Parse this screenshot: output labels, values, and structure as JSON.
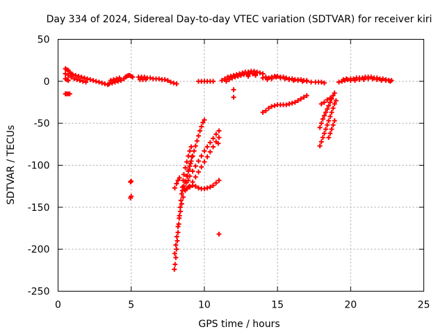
{
  "chart_data": {
    "type": "scatter",
    "title": "Day 334 of 2024, Sidereal Day-to-day VTEC variation (SDTVAR) for receiver kiri",
    "xlabel": "GPS time / hours",
    "ylabel": "SDTVAR / TECUs",
    "xlim": [
      0,
      25
    ],
    "ylim": [
      -250,
      50
    ],
    "xticks": [
      0,
      5,
      10,
      15,
      20,
      25
    ],
    "yticks": [
      -250,
      -200,
      -150,
      -100,
      -50,
      0,
      50
    ],
    "grid": true,
    "marker": "plus",
    "color": "#ff0000",
    "series": [
      {
        "points": [
          [
            0.5,
            15
          ],
          [
            0.6,
            14
          ],
          [
            0.7,
            13
          ],
          [
            0.8,
            11
          ],
          [
            0.9,
            9
          ],
          [
            1.0,
            8
          ],
          [
            1.2,
            7
          ],
          [
            1.4,
            6
          ],
          [
            1.6,
            5
          ],
          [
            1.8,
            4
          ],
          [
            2.0,
            3
          ],
          [
            2.2,
            2
          ],
          [
            2.4,
            1
          ],
          [
            2.6,
            0
          ],
          [
            2.8,
            -1
          ],
          [
            3.0,
            -2
          ],
          [
            3.2,
            -3
          ],
          [
            3.4,
            -4
          ],
          [
            0.5,
            9
          ],
          [
            0.7,
            7
          ],
          [
            0.9,
            5
          ],
          [
            1.1,
            3
          ],
          [
            1.3,
            2
          ],
          [
            1.5,
            1
          ],
          [
            1.7,
            0
          ],
          [
            1.9,
            -1
          ],
          [
            0.5,
            3
          ],
          [
            0.6,
            2
          ],
          [
            0.7,
            1
          ],
          [
            0.5,
            -15
          ],
          [
            0.6,
            -15
          ],
          [
            0.7,
            -15
          ],
          [
            0.8,
            -15
          ],
          [
            3.5,
            -3
          ],
          [
            3.7,
            -2
          ],
          [
            3.9,
            -1
          ],
          [
            4.1,
            0
          ],
          [
            4.3,
            1
          ],
          [
            4.5,
            3
          ],
          [
            4.6,
            5
          ],
          [
            4.7,
            6
          ],
          [
            4.8,
            7
          ],
          [
            4.9,
            7
          ],
          [
            5.0,
            6
          ],
          [
            5.1,
            5
          ],
          [
            3.6,
            1
          ],
          [
            3.8,
            2
          ],
          [
            4.0,
            3
          ],
          [
            4.2,
            4
          ],
          [
            5.5,
            5
          ],
          [
            5.7,
            5
          ],
          [
            5.9,
            5
          ],
          [
            6.1,
            4
          ],
          [
            6.3,
            4
          ],
          [
            6.5,
            3
          ],
          [
            6.7,
            3
          ],
          [
            6.9,
            3
          ],
          [
            7.1,
            2
          ],
          [
            7.3,
            2
          ],
          [
            7.5,
            1
          ],
          [
            7.7,
            -1
          ],
          [
            7.9,
            -2
          ],
          [
            8.1,
            -3
          ],
          [
            5.6,
            2
          ],
          [
            5.8,
            2
          ],
          [
            6.0,
            2
          ],
          [
            5.0,
            -119
          ],
          [
            4.95,
            -120
          ],
          [
            5.0,
            -137
          ],
          [
            4.95,
            -139
          ],
          [
            7.95,
            -224
          ],
          [
            8.0,
            -218
          ],
          [
            8.05,
            -210
          ],
          [
            8.1,
            -200
          ],
          [
            8.15,
            -190
          ],
          [
            8.2,
            -180
          ],
          [
            8.25,
            -170
          ],
          [
            8.3,
            -160
          ],
          [
            8.35,
            -150
          ],
          [
            8.4,
            -142
          ],
          [
            8.45,
            -134
          ],
          [
            8.5,
            -126
          ],
          [
            8.55,
            -118
          ],
          [
            8.6,
            -111
          ],
          [
            8.7,
            -103
          ],
          [
            8.8,
            -96
          ],
          [
            8.9,
            -89
          ],
          [
            9.0,
            -83
          ],
          [
            9.1,
            -78
          ],
          [
            7.98,
            -205
          ],
          [
            8.05,
            -195
          ],
          [
            8.12,
            -185
          ],
          [
            8.2,
            -173
          ],
          [
            8.28,
            -163
          ],
          [
            8.36,
            -155
          ],
          [
            8.45,
            -146
          ],
          [
            8.55,
            -138
          ],
          [
            8.65,
            -129
          ],
          [
            8.75,
            -121
          ],
          [
            8.85,
            -113
          ],
          [
            8.95,
            -105
          ],
          [
            9.05,
            -98
          ],
          [
            9.15,
            -90
          ],
          [
            7.98,
            -127
          ],
          [
            8.1,
            -122
          ],
          [
            8.2,
            -118
          ],
          [
            8.3,
            -115
          ],
          [
            8.5,
            -130
          ],
          [
            8.6,
            -125
          ],
          [
            8.7,
            -119
          ],
          [
            8.8,
            -113
          ],
          [
            8.9,
            -107
          ],
          [
            9.0,
            -101
          ],
          [
            9.1,
            -95
          ],
          [
            9.2,
            -89
          ],
          [
            9.3,
            -83
          ],
          [
            9.4,
            -77
          ],
          [
            9.5,
            -71
          ],
          [
            9.6,
            -65
          ],
          [
            9.7,
            -59
          ],
          [
            9.8,
            -54
          ],
          [
            9.9,
            -49
          ],
          [
            10.0,
            -46
          ],
          [
            8.7,
            -130
          ],
          [
            8.8,
            -128
          ],
          [
            8.9,
            -126
          ],
          [
            9.0,
            -125
          ],
          [
            9.2,
            -124
          ],
          [
            9.4,
            -125
          ],
          [
            9.6,
            -127
          ],
          [
            9.8,
            -128
          ],
          [
            10.0,
            -128
          ],
          [
            10.2,
            -127
          ],
          [
            10.4,
            -126
          ],
          [
            10.6,
            -124
          ],
          [
            10.8,
            -121
          ],
          [
            11.0,
            -118
          ],
          [
            8.9,
            -118
          ],
          [
            9.0,
            -113
          ],
          [
            9.2,
            -107
          ],
          [
            9.4,
            -101
          ],
          [
            9.6,
            -95
          ],
          [
            9.8,
            -89
          ],
          [
            10.0,
            -83
          ],
          [
            10.2,
            -78
          ],
          [
            10.4,
            -73
          ],
          [
            10.6,
            -68
          ],
          [
            10.8,
            -63
          ],
          [
            11.0,
            -59
          ],
          [
            9.0,
            -126
          ],
          [
            9.2,
            -120
          ],
          [
            9.4,
            -114
          ],
          [
            9.6,
            -108
          ],
          [
            9.8,
            -102
          ],
          [
            10.0,
            -96
          ],
          [
            10.2,
            -90
          ],
          [
            10.4,
            -84
          ],
          [
            10.6,
            -78
          ],
          [
            10.8,
            -72
          ],
          [
            11.0,
            -67
          ],
          [
            10.95,
            -74
          ],
          [
            11.0,
            -182
          ],
          [
            9.6,
            0
          ],
          [
            9.8,
            0
          ],
          [
            10.0,
            0
          ],
          [
            10.2,
            0
          ],
          [
            10.4,
            0
          ],
          [
            10.6,
            0
          ],
          [
            11.2,
            1
          ],
          [
            11.4,
            3
          ],
          [
            11.6,
            5
          ],
          [
            11.8,
            6
          ],
          [
            12.0,
            7
          ],
          [
            12.2,
            8
          ],
          [
            12.4,
            9
          ],
          [
            12.6,
            10
          ],
          [
            12.8,
            11
          ],
          [
            13.0,
            11
          ],
          [
            13.2,
            12
          ],
          [
            13.4,
            12
          ],
          [
            13.6,
            11
          ],
          [
            13.8,
            10
          ],
          [
            14.0,
            9
          ],
          [
            11.5,
            0
          ],
          [
            11.7,
            2
          ],
          [
            11.9,
            4
          ],
          [
            12.1,
            5
          ],
          [
            12.3,
            6
          ],
          [
            12.5,
            7
          ],
          [
            12.7,
            8
          ],
          [
            12.9,
            8
          ],
          [
            13.1,
            9
          ],
          [
            13.3,
            9
          ],
          [
            13.5,
            8
          ],
          [
            12.0,
            -10
          ],
          [
            12.0,
            -19
          ],
          [
            13.0,
            6
          ],
          [
            13.5,
            7
          ],
          [
            14.0,
            4
          ],
          [
            14.3,
            2
          ],
          [
            14.6,
            3
          ],
          [
            14.9,
            5
          ],
          [
            15.2,
            4
          ],
          [
            15.5,
            3
          ],
          [
            15.8,
            2
          ],
          [
            16.1,
            1
          ],
          [
            16.4,
            1
          ],
          [
            16.7,
            0
          ],
          [
            17.0,
            0
          ],
          [
            17.3,
            -1
          ],
          [
            14.2,
            5
          ],
          [
            14.4,
            4
          ],
          [
            14.6,
            5
          ],
          [
            14.8,
            6
          ],
          [
            15.0,
            6
          ],
          [
            15.2,
            5
          ],
          [
            15.4,
            5
          ],
          [
            15.6,
            4
          ],
          [
            15.8,
            3
          ],
          [
            16.0,
            3
          ],
          [
            16.2,
            2
          ],
          [
            16.4,
            2
          ],
          [
            16.6,
            2
          ],
          [
            16.8,
            1
          ],
          [
            17.0,
            1
          ],
          [
            17.6,
            -1
          ],
          [
            17.8,
            -1
          ],
          [
            18.0,
            -1
          ],
          [
            18.2,
            -2
          ],
          [
            14.0,
            -37
          ],
          [
            14.2,
            -35
          ],
          [
            14.4,
            -32
          ],
          [
            14.6,
            -30
          ],
          [
            14.8,
            -29
          ],
          [
            15.0,
            -28
          ],
          [
            15.2,
            -28
          ],
          [
            15.4,
            -28
          ],
          [
            15.6,
            -28
          ],
          [
            15.8,
            -27
          ],
          [
            16.0,
            -26
          ],
          [
            16.2,
            -25
          ],
          [
            16.4,
            -23
          ],
          [
            16.6,
            -21
          ],
          [
            16.8,
            -19
          ],
          [
            17.0,
            -17
          ],
          [
            17.9,
            -77
          ],
          [
            18.0,
            -72
          ],
          [
            18.1,
            -67
          ],
          [
            18.2,
            -62
          ],
          [
            18.3,
            -57
          ],
          [
            18.4,
            -52
          ],
          [
            18.5,
            -47
          ],
          [
            18.6,
            -42
          ],
          [
            18.7,
            -37
          ],
          [
            18.8,
            -32
          ],
          [
            18.9,
            -27
          ],
          [
            19.0,
            -23
          ],
          [
            17.9,
            -55
          ],
          [
            18.0,
            -50
          ],
          [
            18.1,
            -45
          ],
          [
            18.2,
            -41
          ],
          [
            18.3,
            -37
          ],
          [
            18.4,
            -33
          ],
          [
            18.5,
            -29
          ],
          [
            18.6,
            -25
          ],
          [
            18.7,
            -21
          ],
          [
            18.8,
            -17
          ],
          [
            18.9,
            -14
          ],
          [
            18.5,
            -67
          ],
          [
            18.6,
            -62
          ],
          [
            18.7,
            -57
          ],
          [
            18.8,
            -52
          ],
          [
            18.9,
            -47
          ],
          [
            18.0,
            -27
          ],
          [
            18.2,
            -25
          ],
          [
            18.4,
            -22
          ],
          [
            18.6,
            -20
          ],
          [
            19.2,
            -1
          ],
          [
            19.4,
            0
          ],
          [
            19.6,
            1
          ],
          [
            19.8,
            2
          ],
          [
            20.0,
            3
          ],
          [
            20.2,
            3
          ],
          [
            20.4,
            4
          ],
          [
            20.6,
            4
          ],
          [
            20.8,
            4
          ],
          [
            21.0,
            5
          ],
          [
            21.2,
            5
          ],
          [
            21.4,
            5
          ],
          [
            21.6,
            4
          ],
          [
            21.8,
            4
          ],
          [
            22.0,
            3
          ],
          [
            22.2,
            3
          ],
          [
            22.4,
            2
          ],
          [
            22.6,
            1
          ],
          [
            22.8,
            1
          ],
          [
            19.5,
            2
          ],
          [
            19.7,
            3
          ],
          [
            20.0,
            1
          ],
          [
            20.3,
            1
          ],
          [
            20.6,
            2
          ],
          [
            20.9,
            2
          ],
          [
            21.2,
            3
          ],
          [
            21.5,
            3
          ],
          [
            21.8,
            2
          ],
          [
            22.1,
            1
          ],
          [
            22.4,
            1
          ],
          [
            22.7,
            0
          ]
        ]
      }
    ]
  }
}
